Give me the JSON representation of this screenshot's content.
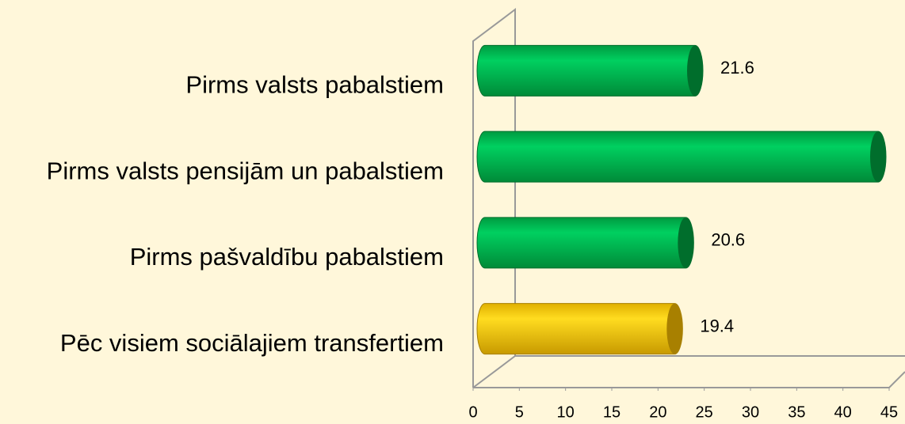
{
  "chart_data": {
    "type": "bar",
    "orientation": "horizontal",
    "categories": [
      "Pirms valsts pabalstiem",
      "Pirms valsts pensijām un pabalstiem",
      "Pirms pašvaldību pabalstiem",
      "Pēc visiem sociālajiem transfertiem"
    ],
    "values": [
      21.6,
      41.4,
      20.6,
      19.4
    ],
    "value_labels": [
      "21.6",
      null,
      "20.6",
      "19.4"
    ],
    "colors": [
      "#00c050",
      "#00c050",
      "#00c050",
      "#ffd000"
    ],
    "xlim": [
      0,
      45
    ],
    "xticks": [
      0,
      5,
      10,
      15,
      20,
      25,
      30,
      35,
      40,
      45
    ]
  }
}
